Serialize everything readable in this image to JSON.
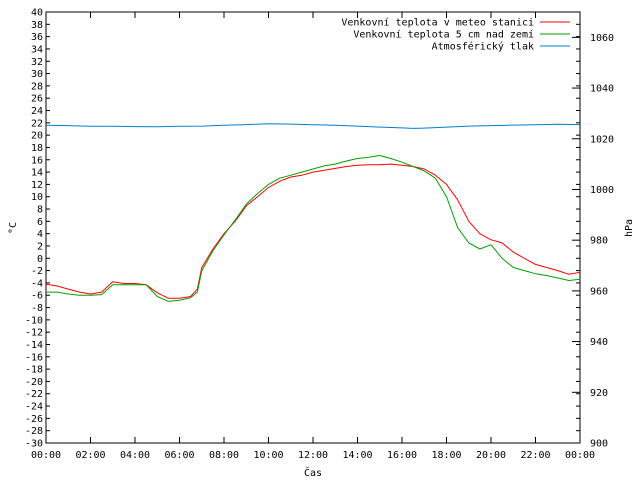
{
  "chart_data": {
    "type": "line",
    "xlabel": "Čas",
    "ylabel": "°C",
    "y2label": "hPa",
    "x_ticks": [
      "00:00",
      "02:00",
      "04:00",
      "06:00",
      "08:00",
      "10:00",
      "12:00",
      "14:00",
      "16:00",
      "18:00",
      "20:00",
      "22:00",
      "00:00"
    ],
    "xlim": [
      0,
      24
    ],
    "ylim": [
      -30,
      40
    ],
    "y_ticks_step": 2,
    "y2lim": [
      900,
      1070
    ],
    "y2_ticks": [
      900,
      920,
      940,
      960,
      980,
      1000,
      1020,
      1040,
      1060
    ],
    "grid": false,
    "legend_position": "top-right",
    "series": [
      {
        "name": "Venkovní teplota v meteo stanici",
        "color": "#ff0000",
        "axis": "left",
        "x": [
          0,
          0.5,
          1,
          1.5,
          2,
          2.5,
          3,
          3.5,
          4,
          4.5,
          5,
          5.5,
          6,
          6.5,
          6.8,
          7,
          7.5,
          8,
          8.5,
          9,
          9.5,
          10,
          10.5,
          11,
          11.5,
          12,
          12.5,
          13,
          13.5,
          14,
          14.5,
          15,
          15.5,
          16,
          16.5,
          17,
          17.5,
          18,
          18.5,
          19,
          19.5,
          20,
          20.5,
          21,
          21.5,
          22,
          22.5,
          23,
          23.5,
          24
        ],
        "y": [
          -4.2,
          -4.5,
          -5,
          -5.5,
          -5.8,
          -5.5,
          -3.8,
          -4.1,
          -4.1,
          -4.3,
          -5.6,
          -6.5,
          -6.5,
          -6.2,
          -5,
          -1.5,
          1.5,
          4,
          6,
          8.5,
          10,
          11.5,
          12.5,
          13.2,
          13.5,
          14,
          14.3,
          14.6,
          14.9,
          15.1,
          15.2,
          15.2,
          15.3,
          15.1,
          14.9,
          14.5,
          13.5,
          12,
          9.5,
          6,
          4,
          3,
          2.5,
          1,
          0,
          -1,
          -1.5,
          -2,
          -2.6,
          -2.3
        ]
      },
      {
        "name": "Venkovní teplota 5 cm nad zemí",
        "color": "#00a000",
        "axis": "left",
        "x": [
          0,
          0.5,
          1,
          1.5,
          2,
          2.5,
          3,
          3.5,
          4,
          4.5,
          5,
          5.5,
          6,
          6.5,
          6.8,
          7,
          7.5,
          8,
          8.5,
          9,
          9.5,
          10,
          10.5,
          11,
          11.5,
          12,
          12.5,
          13,
          13.5,
          14,
          14.5,
          15,
          15.5,
          16,
          16.5,
          17,
          17.5,
          18,
          18.5,
          19,
          19.5,
          20,
          20.5,
          21,
          21.5,
          22,
          22.5,
          23,
          23.5,
          24
        ],
        "y": [
          -5.5,
          -5.5,
          -5.8,
          -6,
          -6,
          -5.9,
          -4.3,
          -4.3,
          -4.3,
          -4.3,
          -6.2,
          -7,
          -6.8,
          -6.4,
          -5.5,
          -2,
          1.2,
          3.8,
          6.2,
          8.8,
          10.5,
          12,
          13,
          13.5,
          14,
          14.5,
          15,
          15.3,
          15.8,
          16.2,
          16.4,
          16.7,
          16.2,
          15.6,
          14.9,
          14.2,
          13,
          10,
          5,
          2.5,
          1.5,
          2.2,
          0,
          -1.5,
          -2,
          -2.5,
          -2.8,
          -3.2,
          -3.6,
          -3.4
        ]
      },
      {
        "name": "Atmosférický tlak",
        "color": "#0080d0",
        "axis": "right",
        "x": [
          0,
          1,
          2,
          3,
          4,
          5,
          6,
          7,
          8,
          9,
          10,
          11,
          12,
          13,
          14,
          15,
          16,
          16.5,
          17,
          18,
          19,
          20,
          21,
          22,
          23,
          24
        ],
        "y": [
          1025.3,
          1025.2,
          1024.9,
          1024.9,
          1024.8,
          1024.7,
          1024.9,
          1025,
          1025.3,
          1025.6,
          1025.9,
          1025.8,
          1025.5,
          1025.3,
          1025,
          1024.6,
          1024.3,
          1024.1,
          1024.2,
          1024.6,
          1025,
          1025.2,
          1025.4,
          1025.5,
          1025.7,
          1025.6
        ]
      }
    ]
  }
}
